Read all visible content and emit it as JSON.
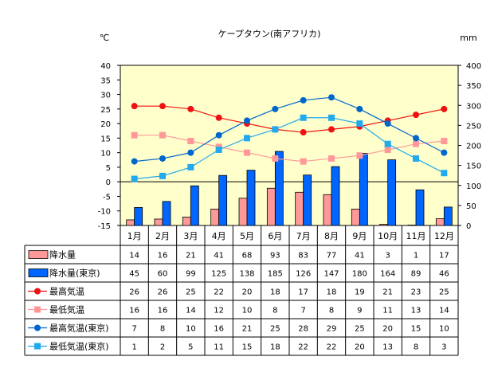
{
  "chart_data": {
    "type": "bar",
    "title": "ケープタウン(南アフリカ)",
    "y_left_unit": "℃",
    "y_right_unit": "mm",
    "y_left_ticks": [
      "40",
      "35",
      "30",
      "25",
      "20",
      "15",
      "10",
      "5",
      "0",
      "-5",
      "-10",
      "-15"
    ],
    "y_right_ticks": [
      "400",
      "350",
      "300",
      "250",
      "200",
      "150",
      "100",
      "50",
      "0"
    ],
    "y_left_range": [
      -15,
      40
    ],
    "y_right_range": [
      0,
      400
    ],
    "grid": false,
    "categories": [
      "1月",
      "2月",
      "3月",
      "4月",
      "5月",
      "6月",
      "7月",
      "8月",
      "9月",
      "10月",
      "11月",
      "12月"
    ],
    "series": [
      {
        "name": "降水量",
        "kind": "bar",
        "axis": "right",
        "color": "#ff9999",
        "values": [
          14,
          16,
          21,
          41,
          68,
          93,
          83,
          77,
          41,
          3,
          1,
          17
        ],
        "cells": [
          "14",
          "16",
          "21",
          "41",
          "68",
          "93",
          "83",
          "77",
          "41",
          "3",
          "1",
          "17"
        ]
      },
      {
        "name": "降水量(東京)",
        "kind": "bar",
        "axis": "right",
        "color": "#0066ff",
        "values": [
          45,
          60,
          99,
          125,
          138,
          185,
          126,
          147,
          180,
          164,
          89,
          46
        ],
        "cells": [
          "45",
          "60",
          "99",
          "125",
          "138",
          "185",
          "126",
          "147",
          "180",
          "164",
          "89",
          "46"
        ]
      },
      {
        "name": "最高気温",
        "kind": "line",
        "marker": "circle",
        "axis": "left",
        "color": "#ee1111",
        "values": [
          26,
          26,
          25,
          22,
          20,
          18,
          17,
          18,
          19,
          21,
          23,
          25
        ],
        "cells": [
          "26",
          "26",
          "25",
          "22",
          "20",
          "18",
          "17",
          "18",
          "19",
          "21",
          "23",
          "25"
        ]
      },
      {
        "name": "最低気温",
        "kind": "line",
        "marker": "square",
        "axis": "left",
        "color": "#ff9999",
        "values": [
          16,
          16,
          14,
          12,
          10,
          8,
          7,
          8,
          9,
          11,
          13,
          14
        ],
        "cells": [
          "16",
          "16",
          "14",
          "12",
          "10",
          "8",
          "7",
          "8",
          "9",
          "11",
          "13",
          "14"
        ]
      },
      {
        "name": "最高気温(東京)",
        "kind": "line",
        "marker": "circle",
        "axis": "left",
        "color": "#0066cc",
        "values": [
          7,
          8,
          10,
          16,
          21,
          25,
          28,
          29,
          25,
          20,
          15,
          10
        ],
        "cells": [
          "7",
          "8",
          "10",
          "16",
          "21",
          "25",
          "28",
          "29",
          "25",
          "20",
          "15",
          "10"
        ]
      },
      {
        "name": "最低気温(東京)",
        "kind": "line",
        "marker": "square",
        "axis": "left",
        "color": "#22aaee",
        "values": [
          1,
          2,
          5,
          11,
          15,
          18,
          22,
          22,
          20,
          13,
          8,
          3
        ],
        "cells": [
          "1",
          "2",
          "5",
          "11",
          "15",
          "18",
          "22",
          "22",
          "20",
          "13",
          "8",
          "3"
        ]
      }
    ]
  }
}
